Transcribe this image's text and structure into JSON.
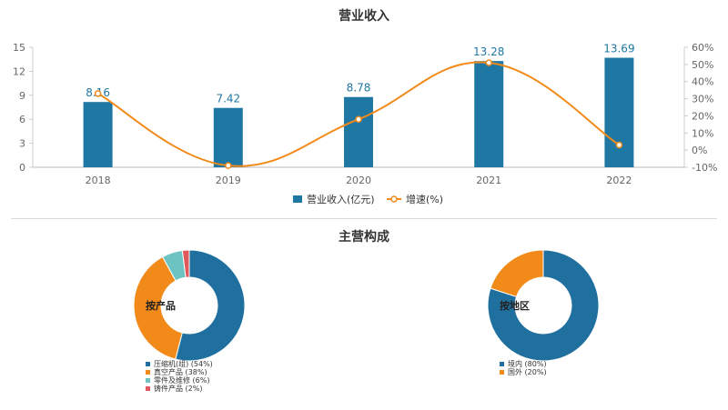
{
  "titles": {
    "revenue": "营业收入",
    "composition": "主营构成"
  },
  "chart_data": [
    {
      "type": "bar",
      "title": "营业收入",
      "categories": [
        "2018",
        "2019",
        "2020",
        "2021",
        "2022"
      ],
      "series": [
        {
          "name": "营业收入(亿元)",
          "type": "bar",
          "axis": "left",
          "values": [
            8.16,
            7.42,
            8.78,
            13.28,
            13.69
          ],
          "color": "#1f77a4"
        },
        {
          "name": "增速(%)",
          "type": "line",
          "axis": "right",
          "values": [
            33,
            -9,
            18,
            51,
            3
          ],
          "color": "#f28a1a"
        }
      ],
      "y_left": {
        "min": 0,
        "max": 15,
        "ticks": [
          "0",
          "3",
          "6",
          "9",
          "12",
          "15"
        ]
      },
      "y_right": {
        "min": -10,
        "max": 60,
        "ticks": [
          "-10%",
          "0%",
          "10%",
          "20%",
          "30%",
          "40%",
          "50%",
          "60%"
        ]
      },
      "legend": {
        "placement": "bottom",
        "entries": [
          "营业收入(亿元)",
          "增速(%)"
        ]
      }
    },
    {
      "type": "pie",
      "title": "按产品",
      "slices": [
        {
          "label": "压缩机(组) (54%)",
          "value": 54,
          "color": "#1f6f9f"
        },
        {
          "label": "真空产品 (38%)",
          "value": 38,
          "color": "#f28a1a"
        },
        {
          "label": "零件及维修 (6%)",
          "value": 6,
          "color": "#6cc3c1"
        },
        {
          "label": "铸件产品 (2%)",
          "value": 2,
          "color": "#e0585b"
        }
      ]
    },
    {
      "type": "pie",
      "title": "按地区",
      "slices": [
        {
          "label": "境内 (80%)",
          "value": 80,
          "color": "#1f6f9f"
        },
        {
          "label": "国外 (20%)",
          "value": 20,
          "color": "#f28a1a"
        }
      ]
    }
  ]
}
